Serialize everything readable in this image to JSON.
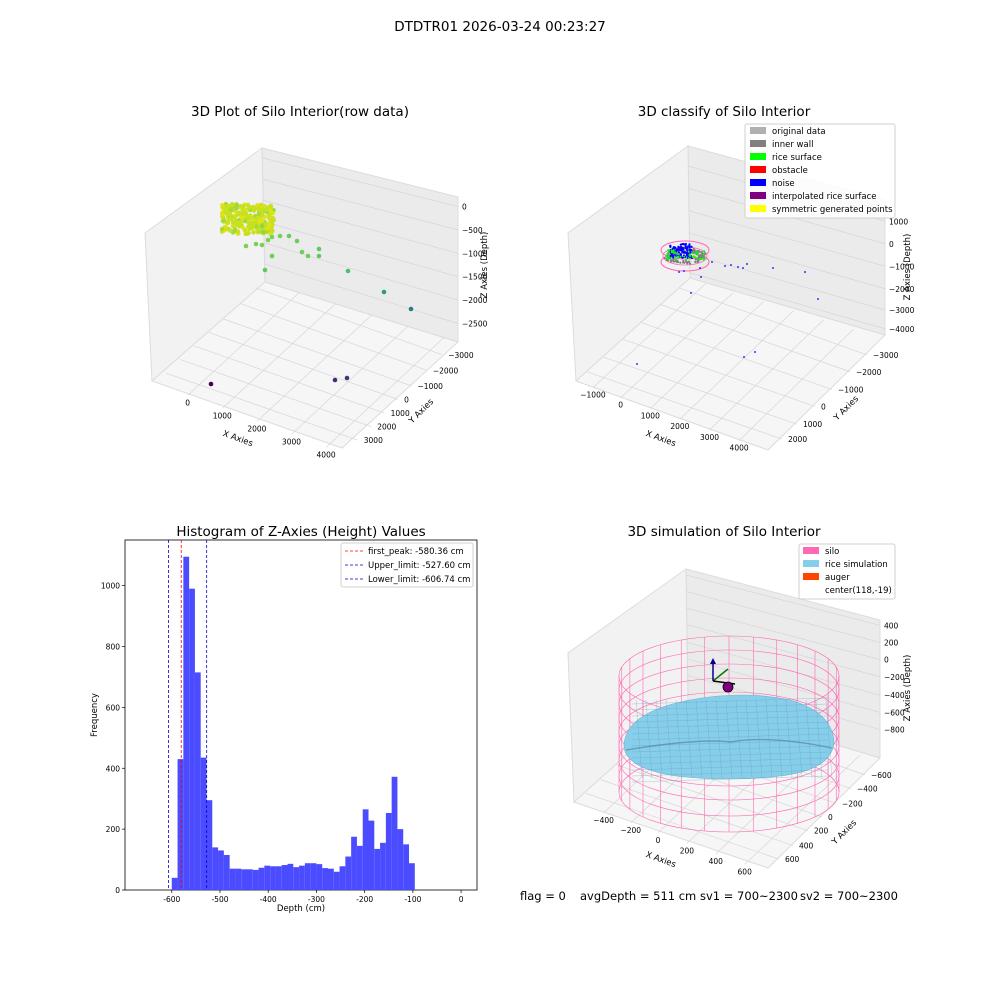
{
  "figure_title": "DTDTR01 2026-03-24 00:23:27",
  "footer": {
    "flag": "flag = 0",
    "avg_depth": "avgDepth = 511 cm",
    "sv1": "sv1 = 700~2300",
    "sv2": "sv2 = 700~2300"
  },
  "colors": {
    "hist_bar": "#4b4bff",
    "first_peak": "#ff0000",
    "limit": "#0000cc",
    "silo": "#ff69b4",
    "rice_sim": "#87ceeb",
    "auger": "#ff4500"
  },
  "chart_data": [
    {
      "type": "scatter",
      "projection": "3d",
      "title": "3D Plot of Silo Interior(row data)",
      "xlabel": "X Axies",
      "ylabel": "Y Axies",
      "zlabel": "Z Axies (Depth)",
      "x_ticks": [
        "0",
        "1000",
        "2000",
        "3000",
        "4000"
      ],
      "y_ticks": [
        "3000",
        "2000",
        "1000",
        "0",
        "−1000",
        "−2000",
        "−3000"
      ],
      "z_ticks": [
        "0",
        "−500",
        "−1000",
        "−1500",
        "−2000",
        "−2500"
      ],
      "xlim": [
        -700,
        4300
      ],
      "ylim": [
        -3300,
        3300
      ],
      "zlim": [
        -2900,
        300
      ],
      "colormap": "viridis by depth",
      "grid": true
    },
    {
      "type": "scatter",
      "projection": "3d",
      "title": "3D classify of Silo Interior",
      "xlabel": "X Axies",
      "ylabel": "Y Axies",
      "zlabel": "Z Axies (Depth)",
      "x_ticks": [
        "−1000",
        "0",
        "1000",
        "2000",
        "3000",
        "4000"
      ],
      "y_ticks": [
        "2000",
        "1000",
        "0",
        "−1000",
        "−2000",
        "−3000"
      ],
      "z_ticks": [
        "1000",
        "0",
        "−1000",
        "−2000",
        "−3000",
        "−4000"
      ],
      "legend": [
        {
          "label": "original data",
          "color": "#b0b0b0"
        },
        {
          "label": "inner wall",
          "color": "#808080"
        },
        {
          "label": "rice surface",
          "color": "#00ff00"
        },
        {
          "label": "obstacle",
          "color": "#ff0000"
        },
        {
          "label": "noise",
          "color": "#0000ff"
        },
        {
          "label": "interpolated rice surface",
          "color": "#800080"
        },
        {
          "label": "symmetric generated points",
          "color": "#ffff00"
        }
      ],
      "legend_placement": "top-right",
      "grid": true
    },
    {
      "type": "bar",
      "title": "Histogram of Z-Axies (Height) Values",
      "xlabel": "Depth (cm)",
      "ylabel": "Frequency",
      "xlim": [
        -697,
        33
      ],
      "ylim": [
        0,
        1150
      ],
      "x_ticks": [
        -600,
        -500,
        -400,
        -300,
        -200,
        -100,
        0
      ],
      "y_ticks": [
        0,
        200,
        400,
        600,
        800,
        1000
      ],
      "bin_start": -600,
      "bin_width": 12,
      "values": [
        40,
        430,
        1095,
        990,
        715,
        435,
        295,
        140,
        130,
        115,
        70,
        70,
        68,
        68,
        66,
        73,
        80,
        78,
        78,
        82,
        86,
        75,
        80,
        88,
        88,
        85,
        72,
        70,
        60,
        78,
        110,
        175,
        145,
        265,
        228,
        135,
        155,
        253,
        372,
        200,
        150,
        88
      ],
      "lines": [
        {
          "label": "first_peak: -580.36 cm",
          "x": -580.36,
          "color": "#ff0000"
        },
        {
          "label": "Upper_limit: -527.60 cm",
          "x": -527.6,
          "color": "#0000cc"
        },
        {
          "label": "Lower_limit: -606.74 cm",
          "x": -606.74,
          "color": "#0000cc"
        }
      ],
      "legend_placement": "top-right",
      "grid": false
    },
    {
      "type": "surface",
      "projection": "3d",
      "title": "3D simulation of Silo Interior",
      "xlabel": "X Axies",
      "ylabel": "Y Axies",
      "zlabel": "Z Axies (Depth)",
      "x_ticks": [
        "−400",
        "−200",
        "0",
        "200",
        "400",
        "600"
      ],
      "y_ticks": [
        "600",
        "400",
        "200",
        "0",
        "−200",
        "−400",
        "−600"
      ],
      "z_ticks": [
        "400",
        "200",
        "0",
        "−200",
        "−400",
        "−600",
        "−800"
      ],
      "legend": [
        {
          "label": "silo",
          "color": "#ff69b4"
        },
        {
          "label": "rice simulation",
          "color": "#87ceeb"
        },
        {
          "label": "auger",
          "color": "#ff4500"
        },
        {
          "label": "center(118,-19)",
          "color": ""
        }
      ],
      "legend_placement": "top-right",
      "grid": true
    }
  ]
}
